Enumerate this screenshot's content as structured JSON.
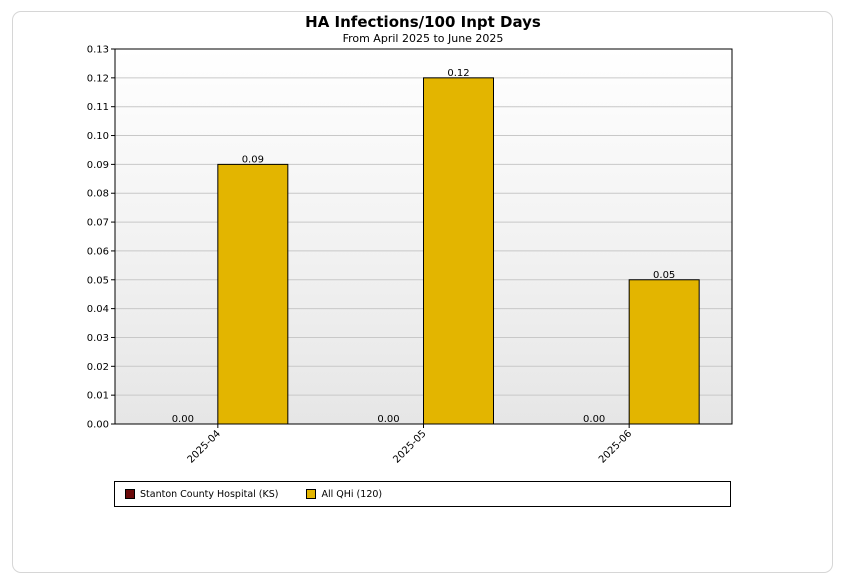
{
  "chart_data": {
    "type": "bar",
    "title": "HA Infections/100 Inpt Days",
    "subtitle": "From April 2025 to June 2025",
    "categories": [
      "2025-04",
      "2025-05",
      "2025-06"
    ],
    "series": [
      {
        "name": "Stanton County Hospital (KS)",
        "values": [
          0.0,
          0.0,
          0.0
        ],
        "labels": [
          "0.00",
          "0.00",
          "0.00"
        ],
        "color": "#6b0a0a"
      },
      {
        "name": "All QHi (120)",
        "values": [
          0.09,
          0.12,
          0.05
        ],
        "labels": [
          "0.09",
          "0.12",
          "0.05"
        ],
        "color": "#e3b500"
      }
    ],
    "ylim": [
      0,
      0.13
    ],
    "yticks": [
      "0.00",
      "0.01",
      "0.02",
      "0.03",
      "0.04",
      "0.05",
      "0.06",
      "0.07",
      "0.08",
      "0.09",
      "0.10",
      "0.11",
      "0.12",
      "0.13"
    ],
    "grid": true,
    "legend_position": "bottom"
  }
}
